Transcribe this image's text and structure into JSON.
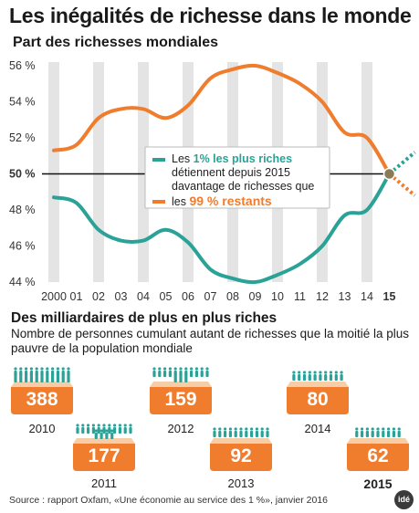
{
  "title": "Les inégalités de richesse dans le monde",
  "subtitle": "Part des richesses mondiales",
  "colors": {
    "top": "#f07d2e",
    "rest": "#2ba297",
    "grid": "#e4e4e4"
  },
  "chart_data": [
    {
      "type": "line",
      "x": [
        "2000",
        "01",
        "02",
        "03",
        "04",
        "05",
        "06",
        "07",
        "08",
        "09",
        "10",
        "11",
        "12",
        "13",
        "14",
        "15"
      ],
      "ylim": [
        44,
        56
      ],
      "yticks": [
        "44 %",
        "46 %",
        "48 %",
        "50 %",
        "52 %",
        "54 %",
        "56 %"
      ],
      "series": [
        {
          "color": "orange",
          "values": [
            51.3,
            51.6,
            53.1,
            53.6,
            53.6,
            53.1,
            53.8,
            55.3,
            55.8,
            56.0,
            55.6,
            55.0,
            54.0,
            52.3,
            52.0,
            50.0
          ],
          "projection": 48.8
        },
        {
          "color": "teal",
          "values": [
            48.7,
            48.4,
            46.9,
            46.3,
            46.3,
            46.9,
            46.2,
            44.7,
            44.2,
            44.0,
            44.4,
            45.0,
            46.0,
            47.7,
            48.0,
            50.0
          ],
          "projection": 51.2
        }
      ],
      "annotation": {
        "line1_prefix": "Les ",
        "line1_highlight": "1% les plus riches",
        "line2": "détiennent depuis 2015",
        "line3": "davantage de richesses que",
        "line4_prefix": "les ",
        "line4_highlight": "99 % restants"
      }
    },
    {
      "type": "bar",
      "title": "Des milliardaires de plus en plus riches",
      "subtitle": "Nombre de personnes cumulant autant de richesses que la moitié la plus pauvre de la population mondiale",
      "categories": [
        "2010",
        "2011",
        "2012",
        "2013",
        "2014",
        "2015"
      ],
      "values": [
        388,
        177,
        159,
        92,
        80,
        62
      ]
    }
  ],
  "source": "Source : rapport Oxfam, «Une économie au service des 1 %», janvier 2016",
  "logo": "idé"
}
